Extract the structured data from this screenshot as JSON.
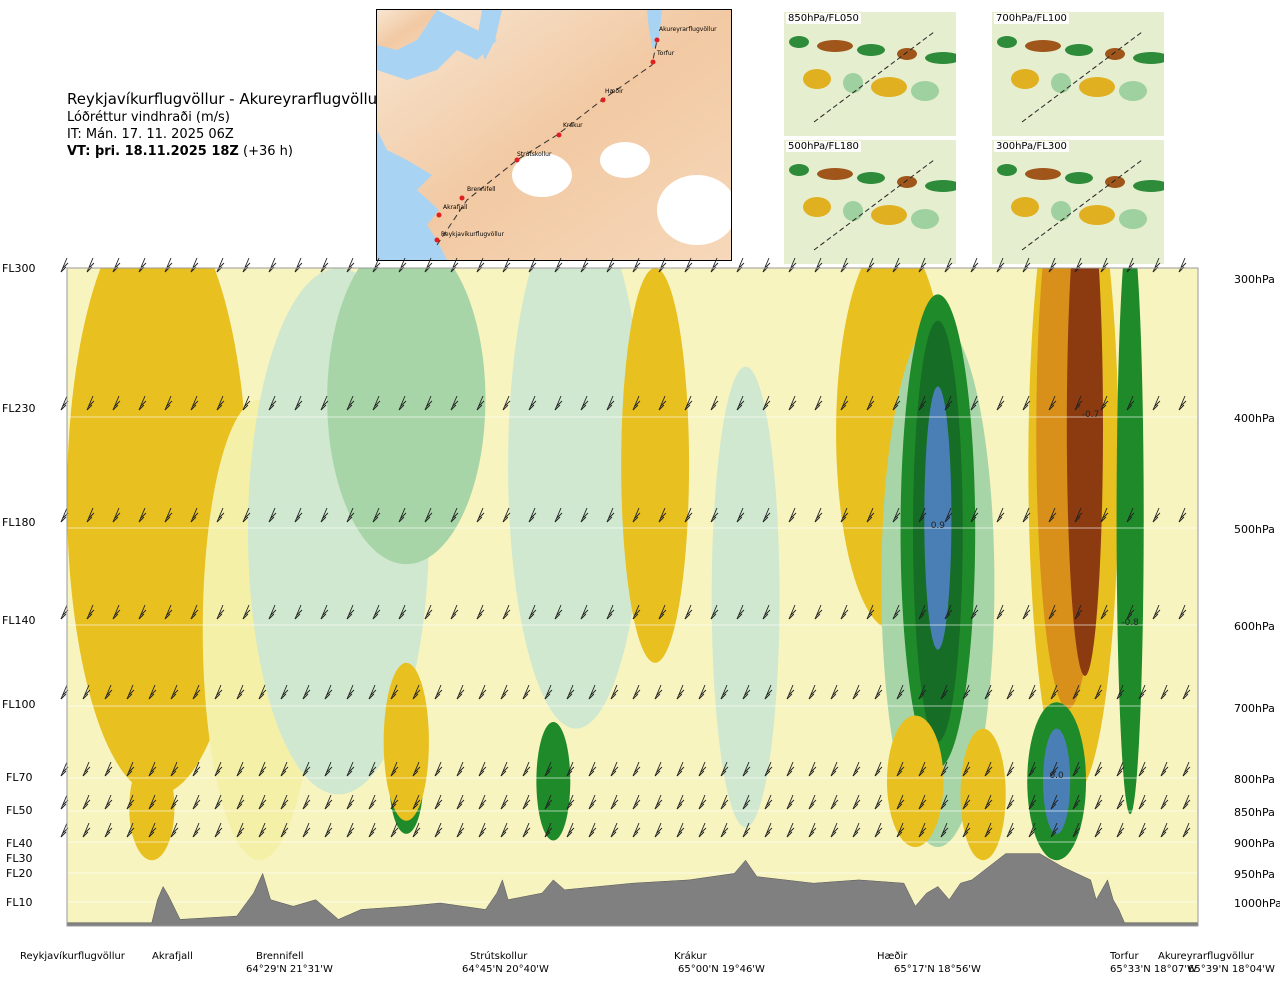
{
  "title": {
    "route": "Reykjavíkurflugvöllur - Akureyrarflugvöllur",
    "variable": "Lóðréttur vindhraði (m/s)",
    "it": "IT: Mán. 17. 11. 2025 06Z",
    "vt_bold": "VT: þri. 18.11.2025 18Z",
    "vt_rest": " (+36 h)"
  },
  "inset_map": {
    "stations": [
      "Akureyrarflugvöllur",
      "Torfur",
      "Hæðir",
      "Krákur",
      "Strútskollur",
      "Brennifell",
      "Akrafjall",
      "Reykjavíkurflugvöllur"
    ]
  },
  "thumbnails": [
    {
      "label": "850hPa/FL050"
    },
    {
      "label": "700hPa/FL100"
    },
    {
      "label": "500hPa/FL180"
    },
    {
      "label": "300hPa/FL300"
    }
  ],
  "colors": {
    "strong_up": "#4a7fb5",
    "up": "#1f8a2a",
    "weak_up": "#cfe8cf",
    "weak_down": "#f5f0a8",
    "down": "#e8c020",
    "strong_down": "#8c3b10",
    "terrain": "#808080"
  },
  "chart_data": {
    "type": "heatmap",
    "title": "Lóðréttur vindhraði (m/s)",
    "flight_levels": [
      "FL300",
      "FL230",
      "FL180",
      "FL140",
      "FL100",
      "FL70",
      "FL50",
      "FL40",
      "FL30",
      "FL20",
      "FL10"
    ],
    "pressure_levels": [
      "300hPa",
      "400hPa",
      "500hPa",
      "600hPa",
      "700hPa",
      "800hPa",
      "850hPa",
      "900hPa",
      "950hPa",
      "1000hPa"
    ],
    "pressure_values": [
      300,
      400,
      500,
      600,
      700,
      800,
      850,
      900,
      950,
      1000
    ],
    "ylim": [
      1000,
      300
    ],
    "x_stations": [
      {
        "name": "Reykjavíkurflugvöllur",
        "coord": ""
      },
      {
        "name": "Akrafjall",
        "coord": ""
      },
      {
        "name": "Brennifell",
        "coord": "64°29'N 21°31'W"
      },
      {
        "name": "Strútskollur",
        "coord": "64°45'N 20°40'W"
      },
      {
        "name": "Krákur",
        "coord": "65°00'N 19°46'W"
      },
      {
        "name": "Hæðir",
        "coord": "65°17'N 18°56'W"
      },
      {
        "name": "Torfur",
        "coord": "65°33'N 18°07'W"
      },
      {
        "name": "Akureyrarflugvöllur",
        "coord": "65°39'N 18°04'W"
      }
    ],
    "extrema_labels": [
      {
        "text": "0.9",
        "station_frac": 0.77,
        "pressure": 500
      },
      {
        "text": "-0.7",
        "station_frac": 0.905,
        "pressure": 400
      },
      {
        "text": "-0.8",
        "station_frac": 0.94,
        "pressure": 600
      },
      {
        "text": "0.0",
        "station_frac": 0.875,
        "pressure": 800
      }
    ]
  }
}
